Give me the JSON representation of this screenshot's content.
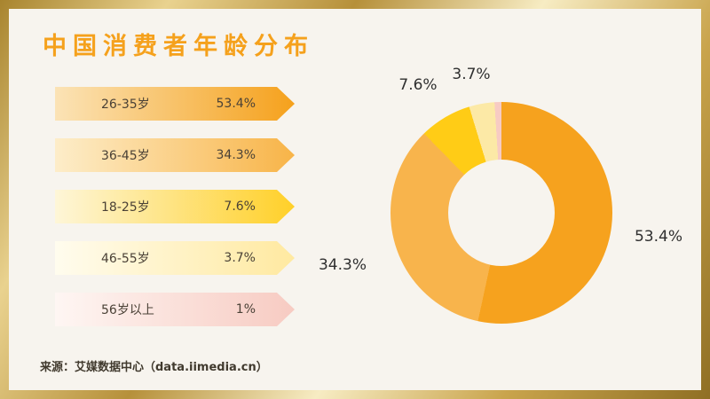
{
  "frame": {
    "accent_gold": "#c9a44c",
    "background": "#f7f4ee"
  },
  "header": {
    "title": "中国消费者年龄分布",
    "title_color": "#f5a11c"
  },
  "legend": {
    "rows": [
      {
        "label": "26-35岁",
        "value": "53.4%",
        "color_from": "#fbe3b6",
        "color_to": "#f5a11c"
      },
      {
        "label": "36-45岁",
        "value": "34.3%",
        "color_from": "#fdedc9",
        "color_to": "#f8b448"
      },
      {
        "label": "18-25岁",
        "value": "7.6%",
        "color_from": "#fef6d8",
        "color_to": "#ffd028"
      },
      {
        "label": "46-55岁",
        "value": "3.7%",
        "color_from": "#fffcee",
        "color_to": "#ffe9a0"
      },
      {
        "label": "56岁以上",
        "value": "1%",
        "color_from": "#fef6f3",
        "color_to": "#f7cbc2"
      }
    ]
  },
  "chart_data": {
    "type": "pie",
    "donut": true,
    "title": "中国消费者年龄分布",
    "categories": [
      "26-35岁",
      "36-45岁",
      "18-25岁",
      "46-55岁",
      "56岁以上"
    ],
    "values": [
      53.4,
      34.3,
      7.6,
      3.7,
      1
    ],
    "unit": "%",
    "colors": [
      "#f6a21e",
      "#f8b44c",
      "#ffcc16",
      "#fce9a6",
      "#f7cbc3"
    ],
    "start_angle_deg": 0,
    "direction": "clockwise",
    "callouts": [
      {
        "text": "53.4%",
        "position": "right"
      },
      {
        "text": "34.3%",
        "position": "left"
      },
      {
        "text": "7.6%",
        "position": "top-left"
      },
      {
        "text": "3.7%",
        "position": "top"
      }
    ]
  },
  "footer": {
    "source": "来源：艾媒数据中心（data.iimedia.cn）"
  }
}
